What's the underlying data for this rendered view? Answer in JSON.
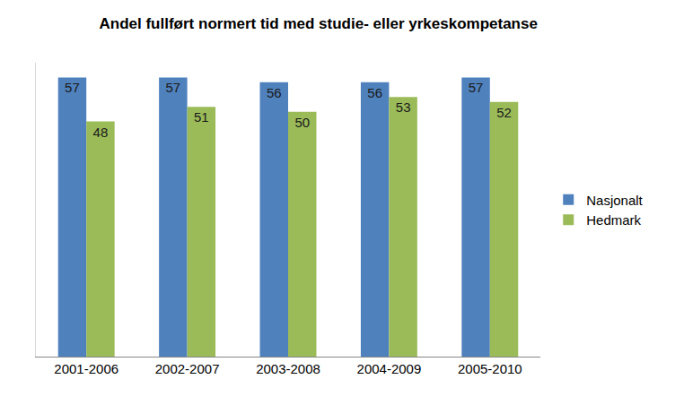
{
  "chart_data": {
    "type": "bar",
    "title": "Andel fullført normert tid med studie- eller yrkeskompetanse",
    "categories": [
      "2001-2006",
      "2002-2007",
      "2003-2008",
      "2004-2009",
      "2005-2010"
    ],
    "series": [
      {
        "name": "Nasjonalt",
        "color": "#4f81bd",
        "values": [
          57,
          57,
          56,
          56,
          57
        ]
      },
      {
        "name": "Hedmark",
        "color": "#9bbb59",
        "values": [
          48,
          51,
          50,
          53,
          52
        ]
      }
    ],
    "ylim": [
      0,
      60
    ],
    "grid": false,
    "legend": "right",
    "data_labels": true,
    "tick_labels": "x"
  }
}
